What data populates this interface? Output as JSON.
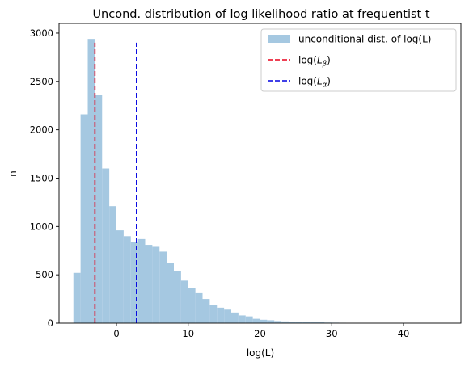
{
  "chart_data": {
    "type": "bar",
    "title": "Uncond. distribution of log likelihood ratio at frequentist  t",
    "xlabel": "log(L)",
    "ylabel": "n",
    "xlim": [
      -8,
      48
    ],
    "ylim": [
      0,
      3100
    ],
    "xticks": [
      0,
      10,
      20,
      30,
      40
    ],
    "yticks": [
      0,
      500,
      1000,
      1500,
      2000,
      2500,
      3000
    ],
    "bin_edges": [
      -6,
      -5,
      -4,
      -3,
      -2,
      -1,
      0,
      1,
      2,
      3,
      4,
      5,
      6,
      7,
      8,
      9,
      10,
      11,
      12,
      13,
      14,
      15,
      16,
      17,
      18,
      19,
      20,
      21,
      22,
      23,
      24,
      25,
      26,
      27,
      28,
      29,
      30,
      31,
      32
    ],
    "counts": [
      520,
      2160,
      2940,
      2360,
      1600,
      1210,
      960,
      900,
      840,
      870,
      810,
      790,
      740,
      620,
      540,
      440,
      360,
      310,
      250,
      190,
      160,
      140,
      110,
      80,
      70,
      45,
      35,
      30,
      22,
      18,
      14,
      12,
      10,
      8,
      8,
      6,
      5,
      4
    ],
    "bar_color": "#a5c8e1",
    "vlines": [
      {
        "x": -3.0,
        "ymax": 2900,
        "color": "#e8001c",
        "style": "dashed"
      },
      {
        "x": 2.8,
        "ymax": 2900,
        "color": "#0000e0",
        "style": "dashed"
      }
    ],
    "legend": {
      "placement": "top-right",
      "entries": [
        {
          "kind": "patch",
          "color": "#a5c8e1",
          "label": "unconditional dist. of log(L)"
        },
        {
          "kind": "line",
          "color": "#e8001c",
          "label": "log(",
          "sym": "L",
          "sub": "β",
          "tail": ")"
        },
        {
          "kind": "line",
          "color": "#0000e0",
          "label": "log(",
          "sym": "L",
          "sub": "α",
          "tail": ")"
        }
      ]
    }
  }
}
